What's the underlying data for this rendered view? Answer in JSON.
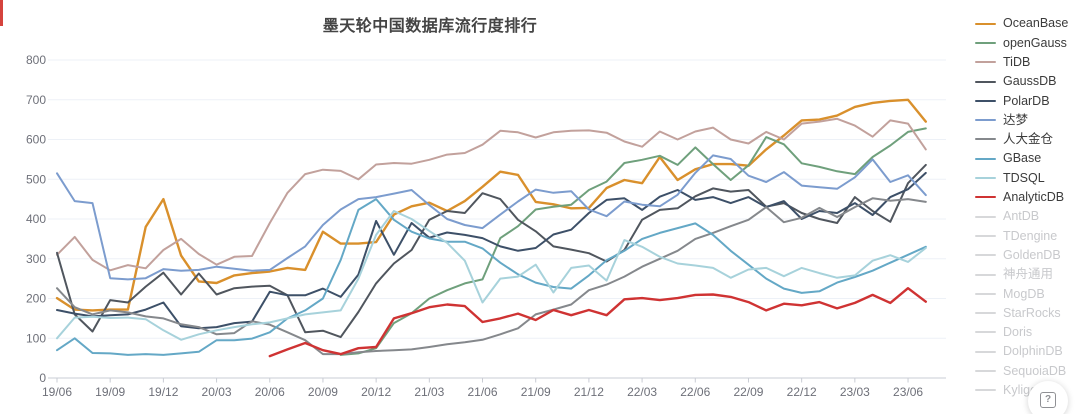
{
  "page": {
    "title": "墨天轮中国数据库流行度排行"
  },
  "help_button": {
    "label": "?"
  },
  "chart_data": {
    "type": "line",
    "title": "墨天轮中国数据库流行度排行",
    "xlabel": "",
    "ylabel": "",
    "ylim": [
      0,
      800
    ],
    "y_ticks": [
      0,
      100,
      200,
      300,
      400,
      500,
      600,
      700,
      800
    ],
    "grid": true,
    "legend_position": "right",
    "x_tick_labels": [
      "19/06",
      "19/09",
      "19/12",
      "20/03",
      "20/06",
      "20/09",
      "20/12",
      "21/03",
      "21/06",
      "21/09",
      "21/12",
      "22/03",
      "22/06",
      "22/09",
      "22/12",
      "23/03",
      "23/06"
    ],
    "x": [
      "19/06",
      "19/07",
      "19/08",
      "19/09",
      "19/10",
      "19/11",
      "19/12",
      "20/01",
      "20/02",
      "20/03",
      "20/04",
      "20/05",
      "20/06",
      "20/07",
      "20/08",
      "20/09",
      "20/10",
      "20/11",
      "20/12",
      "21/01",
      "21/02",
      "21/03",
      "21/04",
      "21/05",
      "21/06",
      "21/07",
      "21/08",
      "21/09",
      "21/10",
      "21/11",
      "21/12",
      "22/01",
      "22/02",
      "22/03",
      "22/04",
      "22/05",
      "22/06",
      "22/07",
      "22/08",
      "22/09",
      "22/10",
      "22/11",
      "22/12",
      "23/01",
      "23/02",
      "23/03",
      "23/04",
      "23/05",
      "23/06",
      "23/07"
    ],
    "series": [
      {
        "name": "OceanBase",
        "color": "#d9902c",
        "width": 2.4,
        "values": [
          201,
          172,
          170,
          172,
          172,
          380,
          450,
          308,
          243,
          239,
          258,
          264,
          268,
          277,
          272,
          368,
          338,
          338,
          342,
          411,
          432,
          441,
          420,
          445,
          481,
          519,
          511,
          443,
          437,
          427,
          428,
          478,
          498,
          490,
          556,
          498,
          525,
          538,
          538,
          534,
          575,
          610,
          648,
          650,
          660,
          682,
          692,
          697,
          700,
          645
        ]
      },
      {
        "name": "openGauss",
        "color": "#6fa07c",
        "width": 2,
        "values": [
          null,
          null,
          null,
          null,
          null,
          null,
          null,
          null,
          null,
          null,
          null,
          null,
          null,
          null,
          null,
          null,
          58,
          62,
          75,
          138,
          163,
          200,
          221,
          238,
          248,
          352,
          382,
          424,
          431,
          436,
          473,
          494,
          541,
          549,
          559,
          536,
          580,
          538,
          498,
          535,
          606,
          588,
          540,
          531,
          520,
          513,
          556,
          585,
          619,
          628
        ]
      },
      {
        "name": "TiDB",
        "color": "#c2a19c",
        "width": 2,
        "values": [
          310,
          355,
          297,
          271,
          284,
          276,
          322,
          350,
          312,
          285,
          305,
          307,
          390,
          466,
          513,
          524,
          521,
          500,
          537,
          541,
          539,
          549,
          562,
          566,
          587,
          622,
          618,
          605,
          618,
          622,
          623,
          617,
          595,
          582,
          620,
          600,
          620,
          630,
          600,
          590,
          619,
          600,
          640,
          645,
          652,
          635,
          607,
          648,
          640,
          575
        ]
      },
      {
        "name": "GaussDB",
        "color": "#50565e",
        "width": 2,
        "values": [
          315,
          160,
          117,
          196,
          190,
          230,
          265,
          210,
          263,
          210,
          226,
          230,
          232,
          208,
          115,
          119,
          103,
          166,
          238,
          288,
          322,
          398,
          420,
          415,
          465,
          450,
          398,
          369,
          331,
          323,
          314,
          293,
          322,
          398,
          423,
          427,
          457,
          477,
          469,
          473,
          431,
          440,
          415,
          400,
          390,
          455,
          420,
          393,
          490,
          536
        ]
      },
      {
        "name": "PolarDB",
        "color": "#3d5068",
        "width": 2,
        "values": [
          171,
          162,
          155,
          158,
          160,
          172,
          190,
          130,
          125,
          128,
          138,
          142,
          217,
          208,
          208,
          225,
          204,
          260,
          395,
          310,
          390,
          353,
          366,
          360,
          352,
          331,
          320,
          327,
          361,
          373,
          415,
          448,
          452,
          423,
          456,
          473,
          448,
          455,
          440,
          455,
          430,
          445,
          400,
          420,
          415,
          440,
          410,
          455,
          475,
          516
        ]
      },
      {
        "name": "达梦",
        "color": "#7c9cce",
        "width": 2,
        "values": [
          515,
          445,
          440,
          251,
          248,
          251,
          274,
          270,
          272,
          280,
          275,
          270,
          272,
          302,
          331,
          385,
          424,
          450,
          455,
          464,
          473,
          435,
          400,
          385,
          377,
          411,
          444,
          474,
          466,
          470,
          424,
          407,
          444,
          436,
          432,
          461,
          516,
          560,
          551,
          509,
          493,
          518,
          484,
          480,
          476,
          505,
          550,
          493,
          510,
          460
        ]
      },
      {
        "name": "人大金仓",
        "color": "#85888c",
        "width": 2,
        "values": [
          226,
          178,
          160,
          170,
          165,
          155,
          150,
          135,
          128,
          110,
          113,
          143,
          134,
          115,
          95,
          60,
          60,
          65,
          68,
          70,
          72,
          78,
          85,
          90,
          96,
          110,
          125,
          160,
          172,
          185,
          221,
          235,
          255,
          280,
          300,
          320,
          350,
          365,
          382,
          398,
          430,
          392,
          403,
          428,
          405,
          430,
          452,
          446,
          450,
          443
        ]
      },
      {
        "name": "GBase",
        "color": "#64a8c6",
        "width": 2,
        "values": [
          70,
          100,
          63,
          62,
          58,
          60,
          58,
          62,
          66,
          95,
          95,
          99,
          115,
          150,
          170,
          200,
          297,
          423,
          450,
          398,
          368,
          351,
          343,
          343,
          326,
          290,
          261,
          240,
          229,
          225,
          258,
          296,
          320,
          350,
          365,
          377,
          389,
          360,
          320,
          285,
          250,
          225,
          214,
          218,
          240,
          254,
          270,
          290,
          310,
          330
        ]
      },
      {
        "name": "TDSQL",
        "color": "#a7d2db",
        "width": 2,
        "values": [
          100,
          152,
          154,
          151,
          152,
          148,
          120,
          96,
          110,
          120,
          128,
          135,
          140,
          150,
          160,
          165,
          170,
          250,
          360,
          420,
          400,
          370,
          340,
          295,
          190,
          250,
          255,
          285,
          215,
          277,
          283,
          245,
          347,
          330,
          305,
          288,
          283,
          277,
          252,
          273,
          277,
          256,
          277,
          264,
          252,
          258,
          295,
          309,
          292,
          327
        ]
      },
      {
        "name": "AnalyticDB",
        "color": "#cf3333",
        "width": 2.4,
        "values": [
          null,
          null,
          null,
          null,
          null,
          null,
          null,
          null,
          null,
          null,
          null,
          null,
          55,
          72,
          88,
          70,
          60,
          75,
          78,
          150,
          163,
          178,
          185,
          181,
          141,
          150,
          162,
          146,
          171,
          158,
          171,
          158,
          198,
          201,
          196,
          201,
          209,
          210,
          204,
          191,
          170,
          187,
          183,
          191,
          175,
          189,
          209,
          189,
          226,
          192
        ]
      }
    ]
  },
  "legend": {
    "items": [
      {
        "label": "OceanBase",
        "color": "#d9902c",
        "active": true
      },
      {
        "label": "openGauss",
        "color": "#6fa07c",
        "active": true
      },
      {
        "label": "TiDB",
        "color": "#c2a19c",
        "active": true
      },
      {
        "label": "GaussDB",
        "color": "#50565e",
        "active": true
      },
      {
        "label": "PolarDB",
        "color": "#3d5068",
        "active": true
      },
      {
        "label": "达梦",
        "color": "#7c9cce",
        "active": true
      },
      {
        "label": "人大金仓",
        "color": "#85888c",
        "active": true
      },
      {
        "label": "GBase",
        "color": "#64a8c6",
        "active": true
      },
      {
        "label": "TDSQL",
        "color": "#a7d2db",
        "active": true
      },
      {
        "label": "AnalyticDB",
        "color": "#cf3333",
        "active": true
      },
      {
        "label": "AntDB",
        "color": "#d7d8da",
        "active": false
      },
      {
        "label": "TDengine",
        "color": "#d7d8da",
        "active": false
      },
      {
        "label": "GoldenDB",
        "color": "#d7d8da",
        "active": false
      },
      {
        "label": "神舟通用",
        "color": "#d7d8da",
        "active": false
      },
      {
        "label": "MogDB",
        "color": "#d7d8da",
        "active": false
      },
      {
        "label": "StarRocks",
        "color": "#d7d8da",
        "active": false
      },
      {
        "label": "Doris",
        "color": "#d7d8da",
        "active": false
      },
      {
        "label": "DolphinDB",
        "color": "#d7d8da",
        "active": false
      },
      {
        "label": "SequoiaDB",
        "color": "#d7d8da",
        "active": false
      },
      {
        "label": "Kyligence",
        "color": "#d7d8da",
        "active": false
      }
    ]
  },
  "axis_style": {
    "grid_color": "#edf1f7",
    "axis_color": "#c9ccd4",
    "tick_label_color": "#6e7079"
  }
}
